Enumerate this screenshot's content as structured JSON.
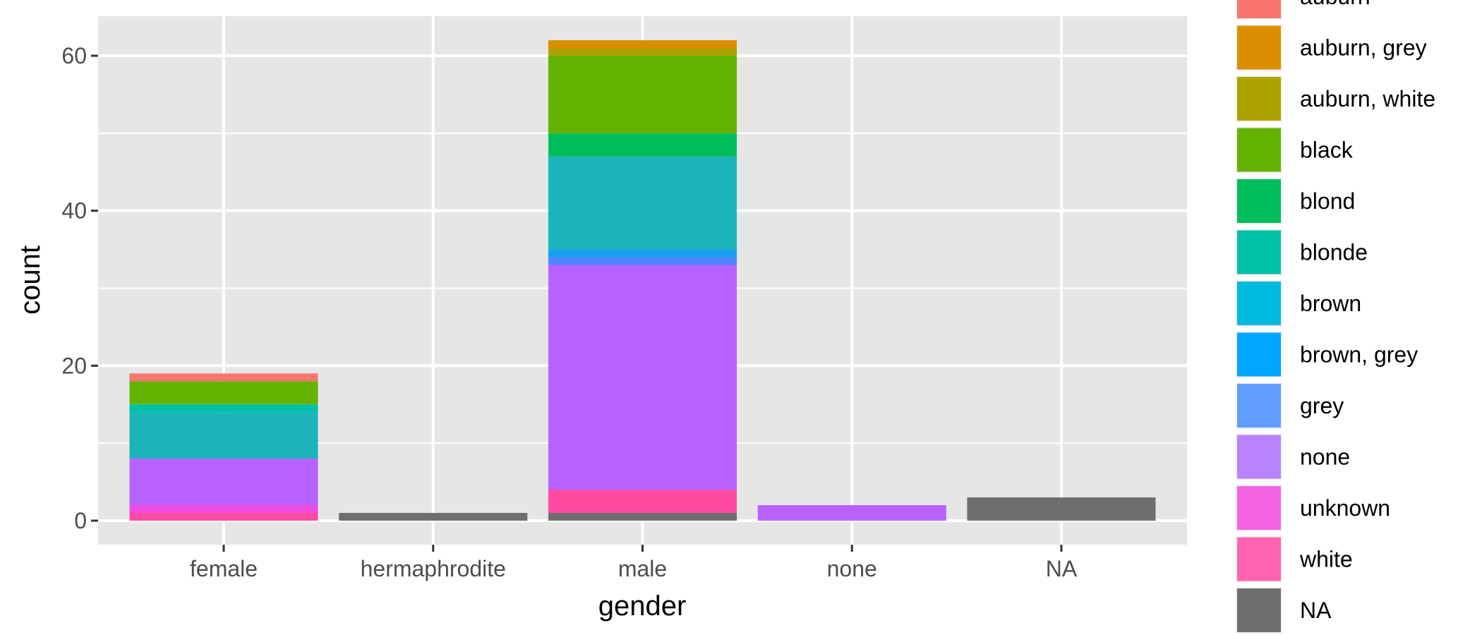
{
  "chart_data": {
    "type": "bar",
    "stacked": true,
    "title": "",
    "xlabel": "gender",
    "ylabel": "count",
    "categories": [
      "female",
      "hermaphrodite",
      "male",
      "none",
      "NA"
    ],
    "ylim": [
      -3.1,
      65.1
    ],
    "yticks": [
      0,
      20,
      40,
      60
    ],
    "grid": true,
    "legend_position": "right",
    "legend_title": "",
    "stack_order_top_to_bottom": [
      "auburn",
      "auburn, grey",
      "auburn, white",
      "black",
      "blond",
      "blonde",
      "brown",
      "brown, grey",
      "grey",
      "none",
      "unknown",
      "white",
      "NA"
    ],
    "series": [
      {
        "name": "auburn",
        "color": "#F8766D",
        "values": [
          1,
          0,
          0,
          0,
          0
        ]
      },
      {
        "name": "auburn, grey",
        "color": "#DB8E00",
        "values": [
          0,
          0,
          1,
          0,
          0
        ]
      },
      {
        "name": "auburn, white",
        "color": "#AEA200",
        "values": [
          0,
          0,
          1,
          0,
          0
        ]
      },
      {
        "name": "black",
        "color": "#64B200",
        "values": [
          3,
          0,
          10,
          0,
          0
        ]
      },
      {
        "name": "blond",
        "color": "#00BD5C",
        "values": [
          0,
          0,
          3,
          0,
          0
        ]
      },
      {
        "name": "blonde",
        "color": "#00C1A7",
        "values": [
          1,
          0,
          0,
          0,
          0
        ]
      },
      {
        "name": "brown",
        "color": "#00BADE",
        "values": [
          6,
          0,
          12,
          0,
          0
        ]
      },
      {
        "name": "brown, grey",
        "color": "#00A6FF",
        "values": [
          0,
          0,
          1,
          0,
          0
        ]
      },
      {
        "name": "grey",
        "color": "#B385FF",
        "values": [
          0,
          0,
          1,
          0,
          0
        ]
      },
      {
        "name": "none",
        "color": "#EF67EB",
        "values": [
          6,
          0,
          29,
          2,
          0
        ]
      },
      {
        "name": "unknown",
        "color": "#FF63B6",
        "values": [
          1,
          0,
          0,
          0,
          0
        ]
      },
      {
        "name": "white",
        "color": "#FF4FA7",
        "values": [
          1,
          0,
          3,
          0,
          0
        ]
      },
      {
        "name": "NA",
        "color": "#6E6E6E",
        "values": [
          0,
          1,
          1,
          0,
          3
        ]
      }
    ],
    "legend_swatch_colors": [
      "#F8766D",
      "#DB8E00",
      "#AEA200",
      "#64B200",
      "#00BD5C",
      "#00C1A7",
      "#00BADE",
      "#00A6FF",
      "#619CFF",
      "#B983FF",
      "#F564E3",
      "#FF64B0",
      "#6E6E6E"
    ],
    "bar_colors": [
      "#F8766D",
      "#DB8E00",
      "#AEA200",
      "#64B200",
      "#00BD5C",
      "#00C1A7",
      "#1AB4BA",
      "#1AA0F0",
      "#4F86FF",
      "#B762FF",
      "#F14BE0",
      "#FF4AA2",
      "#6E6E6E"
    ],
    "panel_background": "#E6E6E6",
    "gridline_color": "#FFFFFF"
  }
}
